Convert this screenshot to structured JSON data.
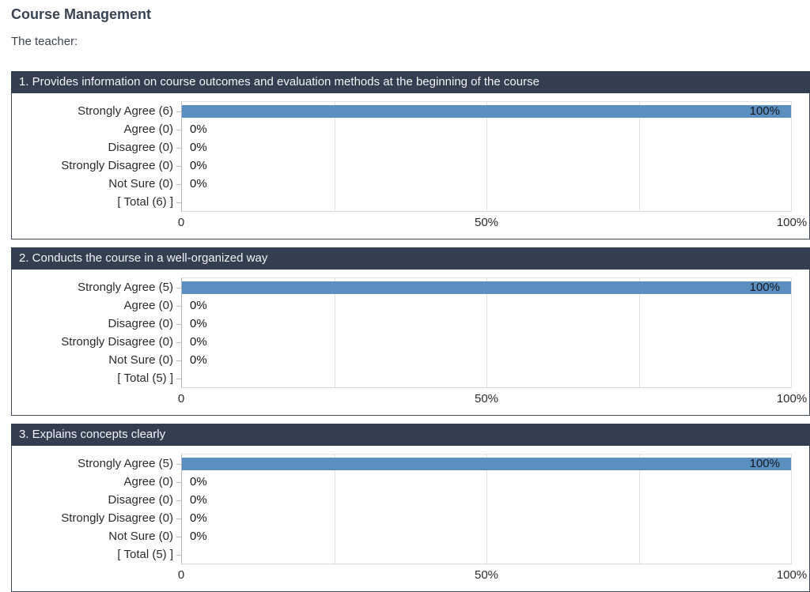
{
  "page": {
    "title": "Course Management",
    "subtitle": "The teacher:"
  },
  "colors": {
    "panel_header_bg": "#333e50",
    "panel_border": "#3f4a5c",
    "bar_fill": "#5b8fbf",
    "title_text": "#394353",
    "gridline": "#e2e2e2"
  },
  "chart_data": [
    {
      "type": "bar",
      "orientation": "horizontal",
      "title": "1. Provides information on course outcomes and evaluation methods at the beginning of the course",
      "categories": [
        "Strongly Agree (6)",
        "Agree (0)",
        "Disagree (0)",
        "Strongly Disagree (0)",
        "Not Sure (0)",
        "[ Total (6) ]"
      ],
      "values": [
        100,
        0,
        0,
        0,
        0,
        null
      ],
      "value_labels": [
        "100%",
        "0%",
        "0%",
        "0%",
        "0%",
        ""
      ],
      "xlim": [
        0,
        100
      ],
      "gridlines_pct": [
        25,
        50,
        75
      ],
      "xticks": [
        {
          "pos": 0,
          "label": "0"
        },
        {
          "pos": 50,
          "label": "50%"
        },
        {
          "pos": 100,
          "label": "100%"
        }
      ],
      "legend": "none",
      "grid": "vertical"
    },
    {
      "type": "bar",
      "orientation": "horizontal",
      "title": "2. Conducts the course in a well-organized way",
      "categories": [
        "Strongly Agree (5)",
        "Agree (0)",
        "Disagree (0)",
        "Strongly Disagree (0)",
        "Not Sure (0)",
        "[ Total (5) ]"
      ],
      "values": [
        100,
        0,
        0,
        0,
        0,
        null
      ],
      "value_labels": [
        "100%",
        "0%",
        "0%",
        "0%",
        "0%",
        ""
      ],
      "xlim": [
        0,
        100
      ],
      "gridlines_pct": [
        25,
        50,
        75
      ],
      "xticks": [
        {
          "pos": 0,
          "label": "0"
        },
        {
          "pos": 50,
          "label": "50%"
        },
        {
          "pos": 100,
          "label": "100%"
        }
      ],
      "legend": "none",
      "grid": "vertical"
    },
    {
      "type": "bar",
      "orientation": "horizontal",
      "title": "3. Explains concepts clearly",
      "categories": [
        "Strongly Agree (5)",
        "Agree (0)",
        "Disagree (0)",
        "Strongly Disagree (0)",
        "Not Sure (0)",
        "[ Total (5) ]"
      ],
      "values": [
        100,
        0,
        0,
        0,
        0,
        null
      ],
      "value_labels": [
        "100%",
        "0%",
        "0%",
        "0%",
        "0%",
        ""
      ],
      "xlim": [
        0,
        100
      ],
      "gridlines_pct": [
        25,
        50,
        75
      ],
      "xticks": [
        {
          "pos": 0,
          "label": "0"
        },
        {
          "pos": 50,
          "label": "50%"
        },
        {
          "pos": 100,
          "label": "100%"
        }
      ],
      "legend": "none",
      "grid": "vertical"
    }
  ]
}
